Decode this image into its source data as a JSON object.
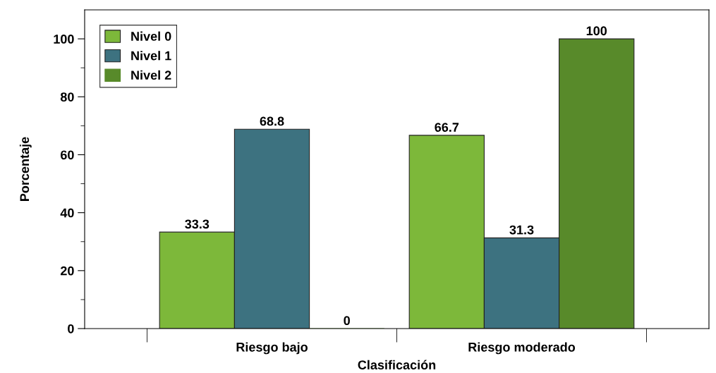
{
  "chart_data": {
    "type": "bar",
    "xlabel": "Clasificación",
    "ylabel": "Porcentaje",
    "categories": [
      "Riesgo bajo",
      "Riesgo moderado"
    ],
    "series": [
      {
        "name": "Nivel 0",
        "color": "#7db83a",
        "values": [
          33.3,
          66.7
        ]
      },
      {
        "name": "Nivel 1",
        "color": "#3d7280",
        "values": [
          68.8,
          31.3
        ]
      },
      {
        "name": "Nivel 2",
        "color": "#588a2a",
        "values": [
          0,
          100
        ]
      }
    ],
    "ylim": [
      0,
      110
    ],
    "yticks": [
      0,
      20,
      40,
      60,
      80,
      100
    ],
    "grid": false,
    "legend": "top left",
    "data_labels": true
  }
}
